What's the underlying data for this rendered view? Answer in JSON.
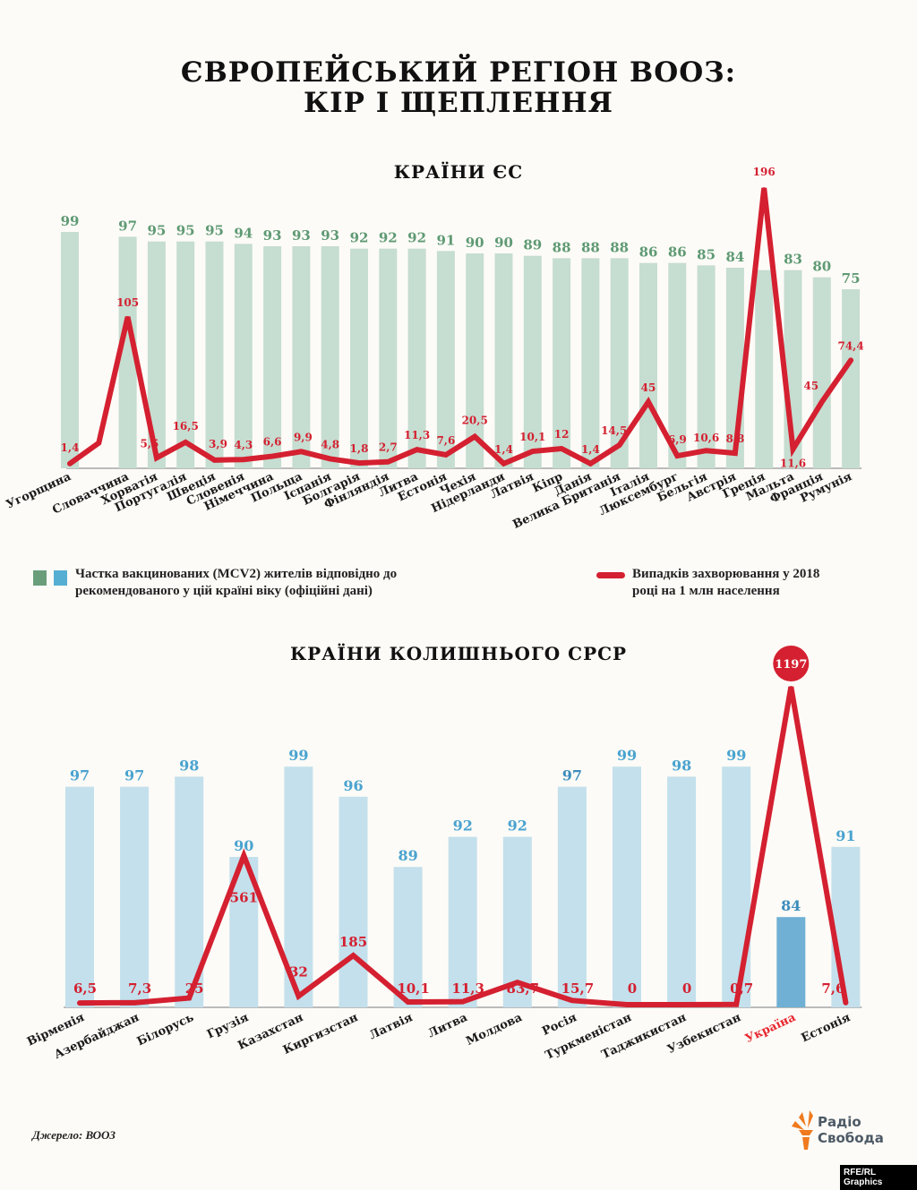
{
  "title_line1": "ЄВРОПЕЙСЬКИЙ РЕГІОН ВООЗ:",
  "title_line2": "КІР І ЩЕПЛЕННЯ",
  "legend": {
    "bars": "Частка вакцинованих (MCV2) жителів відповідно до",
    "bars_line2": "рекомендованого у цій країні віку (офіційні дані)",
    "line": "Випадків захворювання у 2018",
    "line_line2": "році на 1 млн населення"
  },
  "source": "Джерело: ВООЗ",
  "logo": {
    "line1": "Радіо",
    "line2": "Свобода"
  },
  "credit": "RFE/RL Graphics",
  "colors": {
    "eu_bar": "#c6ddd1",
    "eu_label": "#5f9a74",
    "eu_legend": "#6a9e7b",
    "ussr_bar": "#c3e0ec",
    "ussr_label": "#4aa3cf",
    "ussr_legend": "#57aed3",
    "highlight_bar": "#6fb0d4",
    "line": "#d42030",
    "background": "#fdfbf7"
  },
  "chart_data": [
    {
      "type": "bar+line",
      "title": "КРАЇНИ ЄС",
      "categories": [
        "Угорщина",
        "",
        "Словаччина",
        "Хорватія",
        "Португалія",
        "Швеція",
        "Словенія",
        "Німеччина",
        "Польща",
        "Іспанія",
        "Болгарія",
        "Фінляндія",
        "Литва",
        "Естонія",
        "Чехія",
        "Нідерланди",
        "Латвія",
        "Кіпр",
        "Данія",
        "Велика Британія",
        "Італія",
        "Люксембург",
        "Бельгія",
        "Австрія",
        "Греція",
        "Мальта",
        "Франція",
        "Румунія"
      ],
      "bar_values": [
        99,
        null,
        97,
        95,
        95,
        95,
        94,
        93,
        93,
        93,
        92,
        92,
        92,
        91,
        90,
        90,
        89,
        88,
        88,
        88,
        86,
        86,
        85,
        84,
        83,
        83,
        80,
        75
      ],
      "bar_labels": [
        "99",
        "",
        "97",
        "95",
        "95",
        "95",
        "94",
        "93",
        "93",
        "93",
        "92",
        "92",
        "92",
        "91",
        "90",
        "90",
        "89",
        "88",
        "88",
        "88",
        "86",
        "86",
        "85",
        "84",
        "",
        "83",
        "80",
        "75"
      ],
      "line_values": [
        1.4,
        16,
        105,
        5.5,
        16.5,
        3.9,
        4.3,
        6.6,
        9.9,
        4.8,
        1.8,
        2.7,
        11.3,
        7.6,
        20.5,
        1.4,
        10.1,
        12,
        1.4,
        14.5,
        45,
        6.9,
        10.6,
        8.8,
        196,
        11.6,
        45,
        74.4
      ],
      "line_labels": [
        "1,4",
        "",
        "105",
        "5,5",
        "16,5",
        "3,9",
        "4,3",
        "6,6",
        "9,9",
        "4,8",
        "1,8",
        "2,7",
        "11,3",
        "7,6",
        "20,5",
        "1,4",
        "10,1",
        "12",
        "1,4",
        "14,5",
        "45",
        "6,9",
        "10,6",
        "8,8",
        "196",
        "11,6",
        "45",
        "74,4"
      ],
      "bar_ylim": [
        0,
        100
      ],
      "line_ylim": [
        0,
        196
      ]
    },
    {
      "type": "bar+line",
      "title": "КРАЇНИ КОЛИШНЬОГО СРСР",
      "categories": [
        "Вірменія",
        "Азербайджан",
        "Білорусь",
        "Грузія",
        "Казахстан",
        "Киргизстан",
        "Латвія",
        "Литва",
        "Молдова",
        "Росія",
        "Туркменістан",
        "Таджикистан",
        "Узбекистан",
        "Україна",
        "Естонія"
      ],
      "bar_values": [
        97,
        97,
        98,
        90,
        99,
        96,
        89,
        92,
        92,
        97,
        99,
        98,
        99,
        84,
        91
      ],
      "bar_labels": [
        "97",
        "97",
        "98",
        "90",
        "99",
        "96",
        "89",
        "92",
        "92",
        "97",
        "99",
        "98",
        "99",
        "84",
        "91"
      ],
      "line_values": [
        6.5,
        7.3,
        25,
        561,
        32,
        185,
        10.1,
        11.3,
        83.7,
        15.7,
        0,
        0,
        0.7,
        1197,
        7.6
      ],
      "line_labels": [
        "6,5",
        "7,3",
        "25",
        "561",
        "32",
        "185",
        "10,1",
        "11,3",
        "83,7",
        "15,7",
        "0",
        "0",
        "0,7",
        "1197",
        "7,6"
      ],
      "highlight": "Україна",
      "bar_ylim": [
        75,
        100
      ],
      "line_ylim": [
        0,
        1197
      ]
    }
  ]
}
